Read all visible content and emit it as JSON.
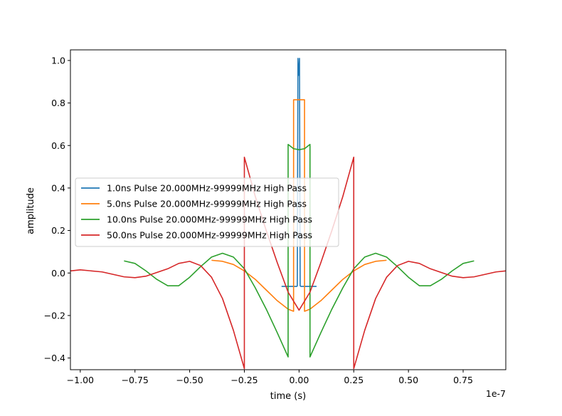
{
  "chart_data": {
    "type": "line",
    "xlabel": "time (s)",
    "ylabel": "amplitude",
    "x_offset_label": "1e-7",
    "x_unit_scale": 1e-07,
    "xlim": [
      -1.045,
      0.945
    ],
    "ylim": [
      -0.455,
      1.05
    ],
    "xticks": [
      -1.0,
      -0.75,
      -0.5,
      -0.25,
      0.0,
      0.25,
      0.5,
      0.75
    ],
    "xtick_labels": [
      "−1.00",
      "−0.75",
      "−0.50",
      "−0.25",
      "0.00",
      "0.25",
      "0.50",
      "0.75"
    ],
    "yticks": [
      -0.4,
      -0.2,
      0.0,
      0.2,
      0.4,
      0.6,
      0.8,
      1.0
    ],
    "ytick_labels": [
      "−0.4",
      "−0.2",
      "0.0",
      "0.2",
      "0.4",
      "0.6",
      "0.8",
      "1.0"
    ],
    "grid": false,
    "legend_position": "center-left",
    "series": [
      {
        "name": "1.0ns Pulse 20.000MHz-99999MHz High Pass",
        "color": "#1f77b4",
        "x": [
          -0.08,
          -0.01,
          -0.008,
          -0.005,
          -0.002,
          0.0,
          0.002,
          0.005,
          0.008,
          0.01,
          0.08
        ],
        "y": [
          -0.063,
          -0.063,
          -0.06,
          1.01,
          0.93,
          0.95,
          1.01,
          -0.06,
          -0.063,
          -0.063,
          -0.063
        ]
      },
      {
        "name": "5.0ns Pulse 20.000MHz-99999MHz High Pass",
        "color": "#ff7f0e",
        "x": [
          -0.4,
          -0.35,
          -0.3,
          -0.25,
          -0.2,
          -0.15,
          -0.1,
          -0.05,
          -0.025,
          -0.025,
          0.0,
          0.025,
          0.025,
          0.05,
          0.1,
          0.15,
          0.2,
          0.25,
          0.3,
          0.35,
          0.4
        ],
        "y": [
          0.06,
          0.055,
          0.04,
          0.01,
          -0.03,
          -0.08,
          -0.13,
          -0.17,
          -0.18,
          0.815,
          0.815,
          0.815,
          -0.18,
          -0.17,
          -0.13,
          -0.08,
          -0.03,
          0.01,
          0.04,
          0.055,
          0.06
        ]
      },
      {
        "name": "10.0ns Pulse 20.000MHz-99999MHz High Pass",
        "color": "#2ca02c",
        "x": [
          -0.8,
          -0.75,
          -0.7,
          -0.65,
          -0.6,
          -0.55,
          -0.5,
          -0.45,
          -0.4,
          -0.35,
          -0.3,
          -0.25,
          -0.2,
          -0.15,
          -0.1,
          -0.05,
          -0.05,
          -0.025,
          0.0,
          0.025,
          0.05,
          0.05,
          0.1,
          0.15,
          0.2,
          0.25,
          0.3,
          0.35,
          0.4,
          0.45,
          0.5,
          0.55,
          0.6,
          0.65,
          0.7,
          0.75,
          0.8
        ],
        "y": [
          0.057,
          0.045,
          0.01,
          -0.03,
          -0.06,
          -0.06,
          -0.02,
          0.03,
          0.075,
          0.093,
          0.075,
          0.02,
          -0.07,
          -0.17,
          -0.28,
          -0.395,
          0.605,
          0.585,
          0.58,
          0.585,
          0.605,
          -0.395,
          -0.28,
          -0.17,
          -0.07,
          0.02,
          0.075,
          0.093,
          0.075,
          0.03,
          -0.02,
          -0.06,
          -0.06,
          -0.03,
          0.01,
          0.045,
          0.057
        ]
      },
      {
        "name": "50.0ns Pulse 20.000MHz-99999MHz High Pass",
        "color": "#d62728",
        "x": [
          -1.045,
          -1.0,
          -0.9,
          -0.8,
          -0.75,
          -0.7,
          -0.6,
          -0.55,
          -0.5,
          -0.45,
          -0.4,
          -0.35,
          -0.3,
          -0.25,
          -0.25,
          -0.2,
          -0.15,
          -0.1,
          -0.05,
          0.0,
          0.05,
          0.1,
          0.15,
          0.2,
          0.25,
          0.25,
          0.3,
          0.35,
          0.4,
          0.45,
          0.5,
          0.55,
          0.6,
          0.7,
          0.75,
          0.8,
          0.9,
          0.945
        ],
        "y": [
          0.01,
          0.015,
          0.005,
          -0.018,
          -0.022,
          -0.015,
          0.02,
          0.045,
          0.055,
          0.035,
          -0.02,
          -0.12,
          -0.27,
          -0.45,
          0.545,
          0.36,
          0.2,
          0.05,
          -0.09,
          -0.175,
          -0.09,
          0.05,
          0.2,
          0.36,
          0.545,
          -0.45,
          -0.27,
          -0.12,
          -0.02,
          0.035,
          0.055,
          0.045,
          0.02,
          -0.015,
          -0.022,
          -0.018,
          0.005,
          0.01
        ]
      }
    ]
  }
}
